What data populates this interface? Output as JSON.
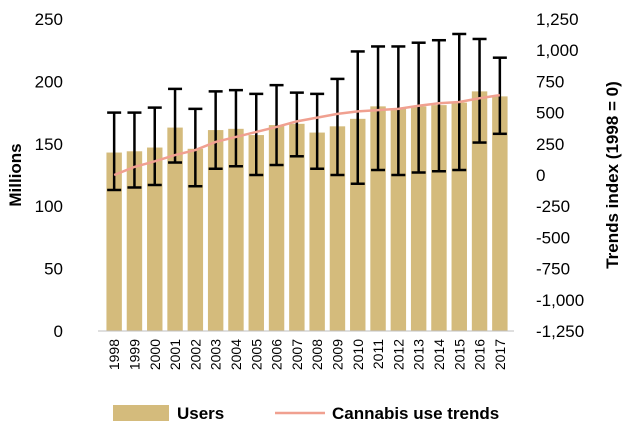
{
  "chart_data": {
    "type": "bar",
    "categories": [
      "1998",
      "1999",
      "2000",
      "2001",
      "2002",
      "2003",
      "2004",
      "2005",
      "2006",
      "2007",
      "2008",
      "2009",
      "2010",
      "2011",
      "2012",
      "2013",
      "2014",
      "2015",
      "2016",
      "2017"
    ],
    "series": [
      {
        "name": "Users",
        "axis": "left",
        "type": "bar",
        "values": [
          143,
          144,
          147,
          163,
          146,
          161,
          162,
          157,
          165,
          166,
          159,
          164,
          170,
          180,
          178,
          180,
          181,
          183,
          192,
          188
        ],
        "error_low": [
          113,
          115,
          117,
          135,
          116,
          130,
          132,
          125,
          133,
          140,
          130,
          125,
          118,
          129,
          125,
          127,
          128,
          129,
          151,
          158
        ],
        "error_high": [
          175,
          175,
          179,
          194,
          178,
          192,
          193,
          190,
          197,
          191,
          190,
          202,
          224,
          228,
          228,
          231,
          233,
          238,
          234,
          219
        ],
        "color": "#D4BB7C"
      },
      {
        "name": "Cannabis use trends",
        "axis": "right",
        "type": "line",
        "values": [
          0,
          65,
          110,
          160,
          200,
          265,
          305,
          345,
          385,
          430,
          460,
          490,
          510,
          520,
          530,
          555,
          575,
          585,
          615,
          640
        ],
        "color": "#F0A090"
      }
    ],
    "ylabel": "Millions",
    "y2label": "Trends index (1998 = 0)",
    "ylim": [
      0,
      250
    ],
    "y2lim": [
      -1250,
      1250
    ],
    "yticks": [
      "0",
      "50",
      "100",
      "150",
      "200",
      "250"
    ],
    "y2ticks": [
      "-1,250",
      "-1,000",
      "-750",
      "-500",
      "-250",
      "0",
      "250",
      "500",
      "750",
      "1,000",
      "1,250"
    ],
    "legend_position": "bottom",
    "grid": false
  }
}
